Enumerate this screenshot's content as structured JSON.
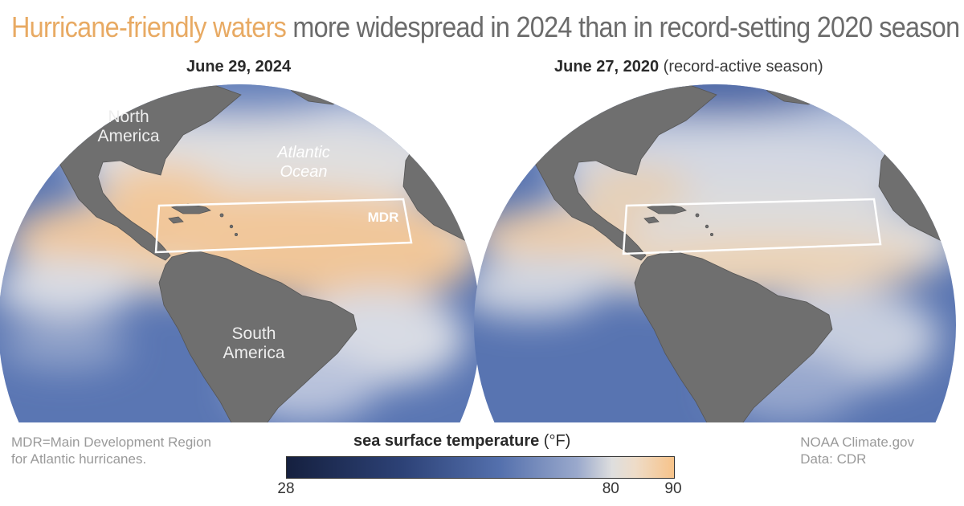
{
  "title": {
    "highlight": "Hurricane-friendly waters",
    "rest": " more widespread in 2024 than in record-setting 2020 season"
  },
  "left_map": {
    "date": "June 29, 2024",
    "labels": {
      "north_america_1": "North",
      "north_america_2": "America",
      "ocean_1": "Atlantic",
      "ocean_2": "Ocean",
      "mdr": "MDR",
      "south_america_1": "South",
      "south_america_2": "America"
    }
  },
  "right_map": {
    "date": "June 27, 2020",
    "note": "(record-active season)"
  },
  "footnote": {
    "line1": "MDR=Main Development Region",
    "line2": "for Atlantic hurricanes."
  },
  "credits": {
    "line1": "NOAA Climate.gov",
    "line2": "Data: CDR"
  },
  "legend": {
    "title_bold": "sea surface temperature",
    "title_unit": "(°F)",
    "min": 28,
    "max": 90,
    "threshold": 80,
    "tick_labels": [
      "28",
      "80",
      "90"
    ],
    "colors": {
      "cold": "#15203f",
      "mid": "#4e6aa6",
      "neutral": "#dcdcdc",
      "warm": "#f6c48e"
    }
  },
  "colors": {
    "title_highlight": "#e8aa63",
    "land": "#6e6e6e",
    "ocean_cool": "#5b77b4",
    "ocean_warm": "#f2c89a"
  }
}
